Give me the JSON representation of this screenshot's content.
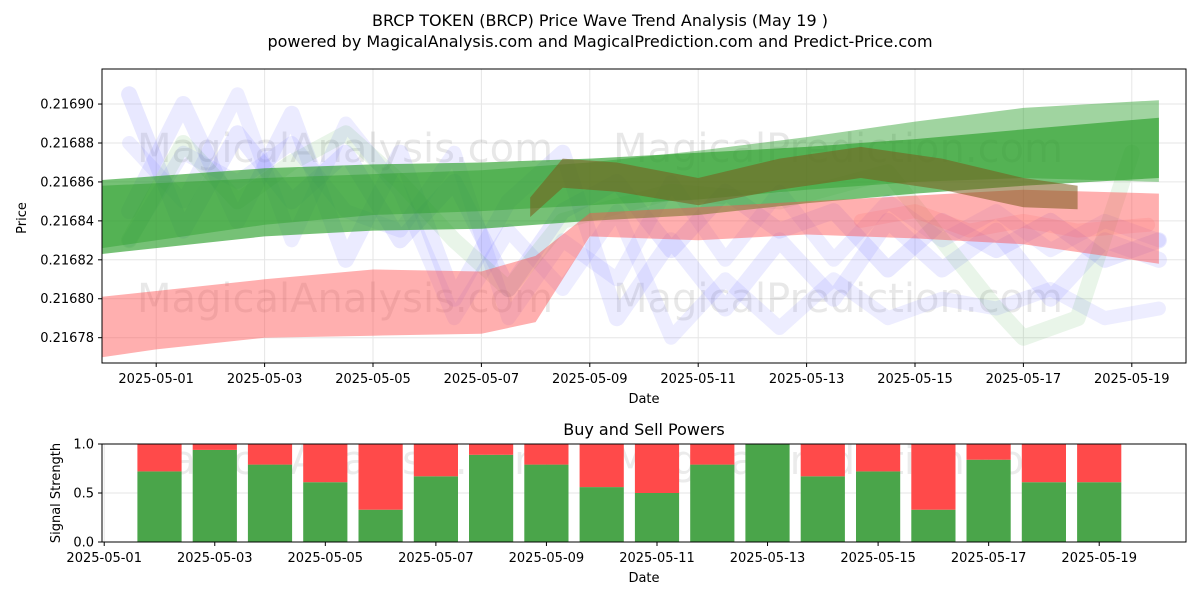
{
  "header": {
    "title": "BRCP TOKEN (BRCP) Price Wave Trend Analysis (May 19 )",
    "subtitle": "powered by MagicalAnalysis.com and MagicalPrediction.com and Predict-Price.com"
  },
  "watermarks": [
    "MagicalAnalysis.com",
    "MagicalPrediction.com"
  ],
  "colors": {
    "green": "#2ca02c",
    "red": "#ff4d4d",
    "blue": "#8080ff",
    "brown": "#7a5a1a",
    "bar_green": "#4aa54a",
    "bar_red": "#ff4a4a",
    "grid": "#e6e6e6"
  },
  "chart_data": [
    {
      "type": "area",
      "title": "",
      "xlabel": "Date",
      "ylabel": "Price",
      "xlim": [
        "2025-04-30",
        "2025-05-20"
      ],
      "ylim": [
        0.216767,
        0.216918
      ],
      "x_ticks": [
        "2025-05-01",
        "2025-05-03",
        "2025-05-05",
        "2025-05-07",
        "2025-05-09",
        "2025-05-11",
        "2025-05-13",
        "2025-05-15",
        "2025-05-17",
        "2025-05-19"
      ],
      "y_ticks": [
        "0.21678",
        "0.21680",
        "0.21682",
        "0.21684",
        "0.21686",
        "0.21688",
        "0.21690"
      ],
      "grid": true,
      "series": [
        {
          "color_key": "green",
          "opacity": 0.65,
          "x": [
            "2025-04-30",
            "2025-05-03",
            "2025-05-05",
            "2025-05-07",
            "2025-05-09",
            "2025-05-11",
            "2025-05-13",
            "2025-05-15",
            "2025-05-17",
            "2025-05-19.5"
          ],
          "upper": [
            0.216861,
            0.216867,
            0.216869,
            0.21687,
            0.216872,
            0.216875,
            0.216878,
            0.216882,
            0.216887,
            0.216893
          ],
          "lower": [
            0.216823,
            0.216832,
            0.216835,
            0.216836,
            0.21684,
            0.216843,
            0.216849,
            0.216854,
            0.216858,
            0.216862
          ]
        },
        {
          "color_key": "green",
          "opacity": 0.45,
          "x": [
            "2025-04-30",
            "2025-05-03",
            "2025-05-05",
            "2025-05-07",
            "2025-05-09",
            "2025-05-11",
            "2025-05-13",
            "2025-05-15",
            "2025-05-17",
            "2025-05-19.5"
          ],
          "upper": [
            0.216858,
            0.216862,
            0.216864,
            0.216866,
            0.21687,
            0.216876,
            0.216883,
            0.216891,
            0.216898,
            0.216902
          ],
          "lower": [
            0.216826,
            0.216838,
            0.216843,
            0.216845,
            0.216848,
            0.216851,
            0.216856,
            0.21686,
            0.216862,
            0.21686
          ]
        },
        {
          "color_key": "red",
          "opacity": 0.45,
          "x": [
            "2025-04-30",
            "2025-05-01",
            "2025-05-03",
            "2025-05-05",
            "2025-05-07",
            "2025-05-08",
            "2025-05-09",
            "2025-05-11",
            "2025-05-13",
            "2025-05-15",
            "2025-05-17",
            "2025-05-19.5"
          ],
          "upper": [
            0.216801,
            0.216804,
            0.21681,
            0.216815,
            0.216814,
            0.216822,
            0.216844,
            0.216847,
            0.21685,
            0.216853,
            0.216856,
            0.216854
          ],
          "lower": [
            0.21677,
            0.216774,
            0.21678,
            0.216781,
            0.216782,
            0.216788,
            0.216832,
            0.21683,
            0.216833,
            0.216831,
            0.216828,
            0.216818
          ]
        },
        {
          "color_key": "brown",
          "opacity": 0.55,
          "x": [
            "2025-05-07.9",
            "2025-05-08.5",
            "2025-05-09.5",
            "2025-05-11",
            "2025-05-12.5",
            "2025-05-14",
            "2025-05-15.5",
            "2025-05-17",
            "2025-05-18"
          ],
          "upper": [
            0.216852,
            0.216872,
            0.21687,
            0.216862,
            0.216872,
            0.216878,
            0.216872,
            0.216862,
            0.216858
          ],
          "lower": [
            0.216842,
            0.216857,
            0.216855,
            0.216848,
            0.216856,
            0.216862,
            0.216856,
            0.216847,
            0.216846
          ]
        }
      ],
      "wave_bands": [
        {
          "color_key": "blue",
          "opacity": 0.18,
          "width": 16,
          "points": [
            [
              "2025-04-30.5",
              0.216905
            ],
            [
              "2025-05-01.5",
              0.216835
            ],
            [
              "2025-05-02.5",
              0.216885
            ],
            [
              "2025-05-03.5",
              0.21685
            ],
            [
              "2025-05-04.5",
              0.216875
            ],
            [
              "2025-05-05.5",
              0.21683
            ],
            [
              "2025-05-06.5",
              0.21686
            ],
            [
              "2025-05-07.5",
              0.216805
            ],
            [
              "2025-05-08.5",
              0.216845
            ],
            [
              "2025-05-09.5",
              0.21686
            ],
            [
              "2025-05-10.5",
              0.216825
            ],
            [
              "2025-05-11.5",
              0.216855
            ],
            [
              "2025-05-12.5",
              0.216835
            ],
            [
              "2025-05-13.5",
              0.216845
            ],
            [
              "2025-05-14.5",
              0.216815
            ],
            [
              "2025-05-15.5",
              0.21684
            ],
            [
              "2025-05-16.5",
              0.216825
            ],
            [
              "2025-05-17.5",
              0.21684
            ],
            [
              "2025-05-18.5",
              0.21682
            ],
            [
              "2025-05-19.5",
              0.21683
            ]
          ]
        },
        {
          "color_key": "blue",
          "opacity": 0.16,
          "width": 16,
          "points": [
            [
              "2025-04-30.5",
              0.216845
            ],
            [
              "2025-05-01.5",
              0.2169
            ],
            [
              "2025-05-02.5",
              0.21684
            ],
            [
              "2025-05-03.5",
              0.216895
            ],
            [
              "2025-05-04.5",
              0.21682
            ],
            [
              "2025-05-05.5",
              0.216875
            ],
            [
              "2025-05-06.5",
              0.2168
            ],
            [
              "2025-05-07.5",
              0.21685
            ],
            [
              "2025-05-08.5",
              0.216875
            ],
            [
              "2025-05-09.5",
              0.21679
            ],
            [
              "2025-05-10.5",
              0.21683
            ],
            [
              "2025-05-11.5",
              0.216795
            ],
            [
              "2025-05-12.5",
              0.21683
            ],
            [
              "2025-05-13.5",
              0.2168
            ],
            [
              "2025-05-14.5",
              0.21684
            ],
            [
              "2025-05-15.5",
              0.216815
            ],
            [
              "2025-05-16.5",
              0.216835
            ],
            [
              "2025-05-17.5",
              0.2168
            ],
            [
              "2025-05-18.5",
              0.21683
            ],
            [
              "2025-05-19.5",
              0.21682
            ]
          ]
        },
        {
          "color_key": "blue",
          "opacity": 0.14,
          "width": 14,
          "points": [
            [
              "2025-04-30.5",
              0.21688
            ],
            [
              "2025-05-01.5",
              0.21685
            ],
            [
              "2025-05-02.5",
              0.216905
            ],
            [
              "2025-05-03.5",
              0.21683
            ],
            [
              "2025-05-04.5",
              0.21689
            ],
            [
              "2025-05-05.5",
              0.216855
            ],
            [
              "2025-05-06.5",
              0.21679
            ],
            [
              "2025-05-07.5",
              0.216835
            ],
            [
              "2025-05-08.5",
              0.216805
            ],
            [
              "2025-05-09.5",
              0.216845
            ],
            [
              "2025-05-10.5",
              0.21678
            ],
            [
              "2025-05-11.5",
              0.21681
            ],
            [
              "2025-05-12.5",
              0.216785
            ],
            [
              "2025-05-13.5",
              0.21681
            ],
            [
              "2025-05-14.5",
              0.21679
            ],
            [
              "2025-05-15.5",
              0.2168
            ],
            [
              "2025-05-16.5",
              0.216795
            ],
            [
              "2025-05-17.5",
              0.216805
            ],
            [
              "2025-05-18.5",
              0.21679
            ],
            [
              "2025-05-19.5",
              0.216795
            ]
          ]
        },
        {
          "color_key": "blue",
          "opacity": 0.14,
          "width": 14,
          "points": [
            [
              "2025-04-30.5",
              0.21683
            ],
            [
              "2025-05-01.5",
              0.216875
            ],
            [
              "2025-05-02.5",
              0.21686
            ],
            [
              "2025-05-03.5",
              0.21688
            ],
            [
              "2025-05-04.5",
              0.216845
            ],
            [
              "2025-05-05.5",
              0.216835
            ],
            [
              "2025-05-06.5",
              0.216875
            ],
            [
              "2025-05-07.5",
              0.21679
            ],
            [
              "2025-05-08.5",
              0.21683
            ],
            [
              "2025-05-09.5",
              0.21681
            ],
            [
              "2025-05-10.5",
              0.21686
            ],
            [
              "2025-05-11.5",
              0.21682
            ],
            [
              "2025-05-12.5",
              0.216855
            ],
            [
              "2025-05-13.5",
              0.21682
            ],
            [
              "2025-05-14.5",
              0.21685
            ],
            [
              "2025-05-15.5",
              0.21683
            ],
            [
              "2025-05-16.5",
              0.216845
            ],
            [
              "2025-05-17.5",
              0.216825
            ],
            [
              "2025-05-18.5",
              0.21684
            ],
            [
              "2025-05-19.5",
              0.21683
            ]
          ]
        },
        {
          "color_key": "green",
          "opacity": 0.1,
          "width": 16,
          "points": [
            [
              "2025-04-30.5",
              0.21683
            ],
            [
              "2025-05-01.5",
              0.21688
            ],
            [
              "2025-05-02.5",
              0.21685
            ],
            [
              "2025-05-03.5",
              0.21687
            ],
            [
              "2025-05-04.5",
              0.216885
            ],
            [
              "2025-05-05.5",
              0.21686
            ],
            [
              "2025-05-06.5",
              0.21683
            ],
            [
              "2025-05-07.5",
              0.216805
            ],
            [
              "2025-05-08.5",
              0.21684
            ],
            [
              "2025-05-10.5",
              0.216855
            ],
            [
              "2025-05-12.5",
              0.21685
            ],
            [
              "2025-05-14.5",
              0.216865
            ],
            [
              "2025-05-16.5",
              0.216795
            ],
            [
              "2025-05-17.0",
              0.21678
            ],
            [
              "2025-05-18.0",
              0.21679
            ],
            [
              "2025-05-19.0",
              0.216875
            ]
          ]
        },
        {
          "color_key": "red",
          "opacity": 0.12,
          "width": 14,
          "points": [
            [
              "2025-05-14.0",
              0.21684
            ],
            [
              "2025-05-15.0",
              0.216845
            ],
            [
              "2025-05-16.0",
              0.216835
            ],
            [
              "2025-05-17.0",
              0.21684
            ],
            [
              "2025-05-18.0",
              0.216835
            ],
            [
              "2025-05-19.3",
              0.216838
            ]
          ]
        }
      ]
    },
    {
      "type": "bar",
      "title": "Buy and Sell Powers",
      "xlabel": "Date",
      "ylabel": "Signal Strength",
      "xlim": [
        "2025-05-01",
        "2025-05-20"
      ],
      "ylim": [
        0,
        1.0
      ],
      "x_ticks": [
        "2025-05-01",
        "2025-05-03",
        "2025-05-05",
        "2025-05-07",
        "2025-05-09",
        "2025-05-11",
        "2025-05-13",
        "2025-05-15",
        "2025-05-17",
        "2025-05-19"
      ],
      "y_ticks": [
        "0.0",
        "0.5",
        "1.0"
      ],
      "grid": true,
      "categories": [
        "2025-05-02",
        "2025-05-03",
        "2025-05-04",
        "2025-05-05",
        "2025-05-06",
        "2025-05-07",
        "2025-05-08",
        "2025-05-09",
        "2025-05-10",
        "2025-05-11",
        "2025-05-12",
        "2025-05-13",
        "2025-05-14",
        "2025-05-15",
        "2025-05-16",
        "2025-05-17",
        "2025-05-18",
        "2025-05-19"
      ],
      "series": [
        {
          "color_key": "bar_green",
          "values": [
            0.72,
            0.94,
            0.79,
            0.61,
            0.33,
            0.67,
            0.89,
            0.79,
            0.56,
            0.5,
            0.79,
            1.0,
            0.67,
            0.72,
            0.33,
            0.84,
            0.61,
            0.61
          ]
        },
        {
          "color_key": "bar_red",
          "values": [
            0.28,
            0.06,
            0.21,
            0.39,
            0.67,
            0.33,
            0.11,
            0.21,
            0.44,
            0.5,
            0.21,
            0.0,
            0.33,
            0.28,
            0.67,
            0.16,
            0.39,
            0.39
          ]
        }
      ]
    }
  ]
}
